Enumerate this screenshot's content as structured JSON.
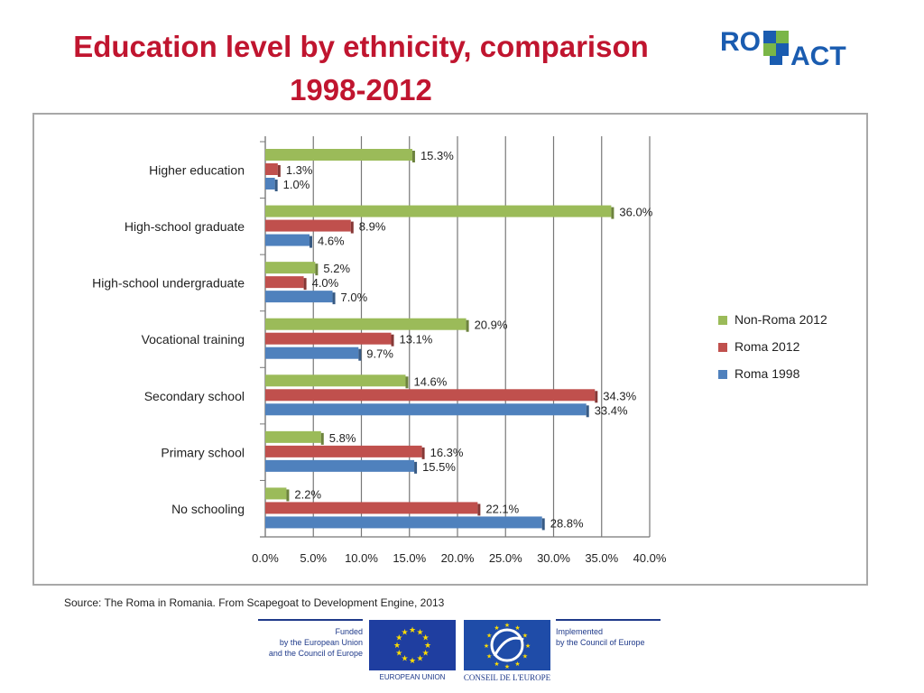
{
  "title": {
    "line1": "Education level by ethnicity, comparison",
    "line2": "1998-2012"
  },
  "logo": {
    "text_left": "RO",
    "text_right": "ACT",
    "brand_color": "#1a5cb0",
    "accent_color": "#7ab648"
  },
  "chart_data": {
    "type": "bar",
    "orientation": "horizontal",
    "categories": [
      "Higher education",
      "High-school graduate",
      "High-school undergraduate",
      "Vocational training",
      "Secondary school",
      "Primary school",
      "No schooling"
    ],
    "series": [
      {
        "name": "Non-Roma 2012",
        "color": "#9bbb59",
        "values": [
          15.3,
          36.0,
          5.2,
          20.9,
          14.6,
          5.8,
          2.2
        ]
      },
      {
        "name": "Roma 2012",
        "color": "#c0504d",
        "values": [
          1.3,
          8.9,
          4.0,
          13.1,
          34.3,
          16.3,
          22.1
        ]
      },
      {
        "name": "Roma 1998",
        "color": "#4f81bd",
        "values": [
          1.0,
          4.6,
          7.0,
          9.7,
          33.4,
          15.5,
          28.8
        ]
      }
    ],
    "value_labels": {
      "Non-Roma 2012": [
        "15.3%",
        "36.0%",
        "5.2%",
        "20.9%",
        "14.6%",
        "5.8%",
        "2.2%"
      ],
      "Roma 2012": [
        "1.3%",
        "8.9%",
        "4.0%",
        "13.1%",
        "34.3%",
        "16.3%",
        "22.1%"
      ],
      "Roma 1998": [
        "1.0%",
        "4.6%",
        "7.0%",
        "9.7%",
        "33.4%",
        "15.5%",
        "28.8%"
      ]
    },
    "xlim": [
      0,
      40
    ],
    "xticks": [
      "0.0%",
      "5.0%",
      "10.0%",
      "15.0%",
      "20.0%",
      "25.0%",
      "30.0%",
      "35.0%",
      "40.0%"
    ],
    "grid": true,
    "legend_position": "right"
  },
  "source": "Source: The Roma in Romania. From Scapegoat to Development Engine, 2013",
  "funding": {
    "line1": "Funded",
    "line2": "by the European Union",
    "line3": "and the Council of Europe"
  },
  "eu_caption": "EUROPEAN UNION",
  "coe_caption": "CONSEIL DE L'EUROPE",
  "implemented": {
    "line1": "Implemented",
    "line2": "by the Council of Europe"
  }
}
